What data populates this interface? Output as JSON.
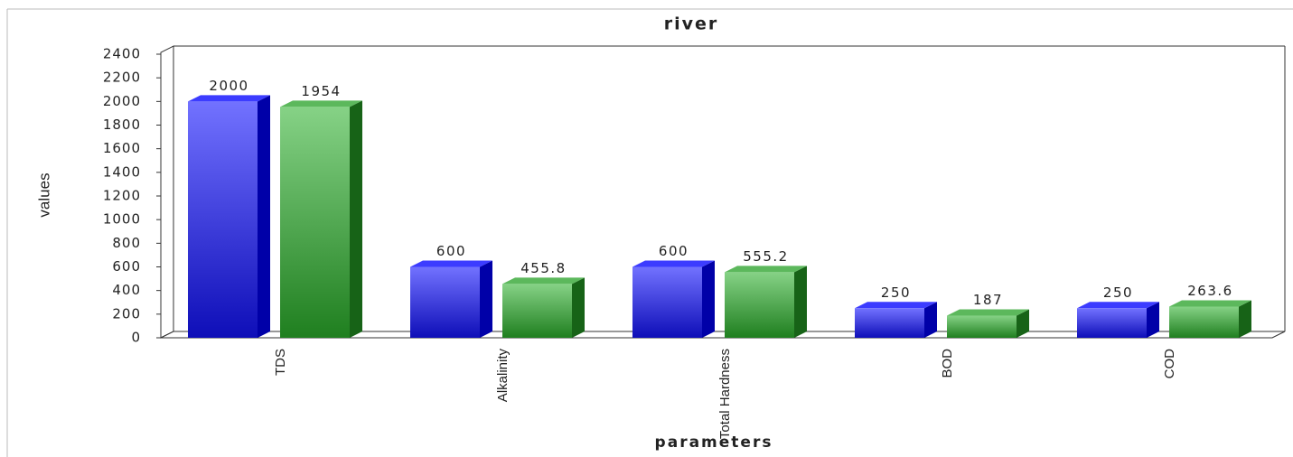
{
  "chart_data": {
    "type": "bar3d",
    "title": "river",
    "x_label": "parameters",
    "y_label": "values",
    "categories": [
      "TDS",
      "Alkalinity",
      "Total Hardness",
      "BOD",
      "COD"
    ],
    "series": [
      {
        "color": "#2020e0",
        "values": [
          2000,
          600,
          600,
          250,
          250
        ]
      },
      {
        "color": "#2e9a2e",
        "values": [
          1954,
          455.8,
          555.2,
          187,
          263.6
        ]
      }
    ],
    "ylim": [
      0,
      2400
    ],
    "yticks": [
      0,
      200,
      400,
      600,
      800,
      1000,
      1200,
      1400,
      1600,
      1800,
      2000,
      2200,
      2400
    ],
    "grid": false
  }
}
